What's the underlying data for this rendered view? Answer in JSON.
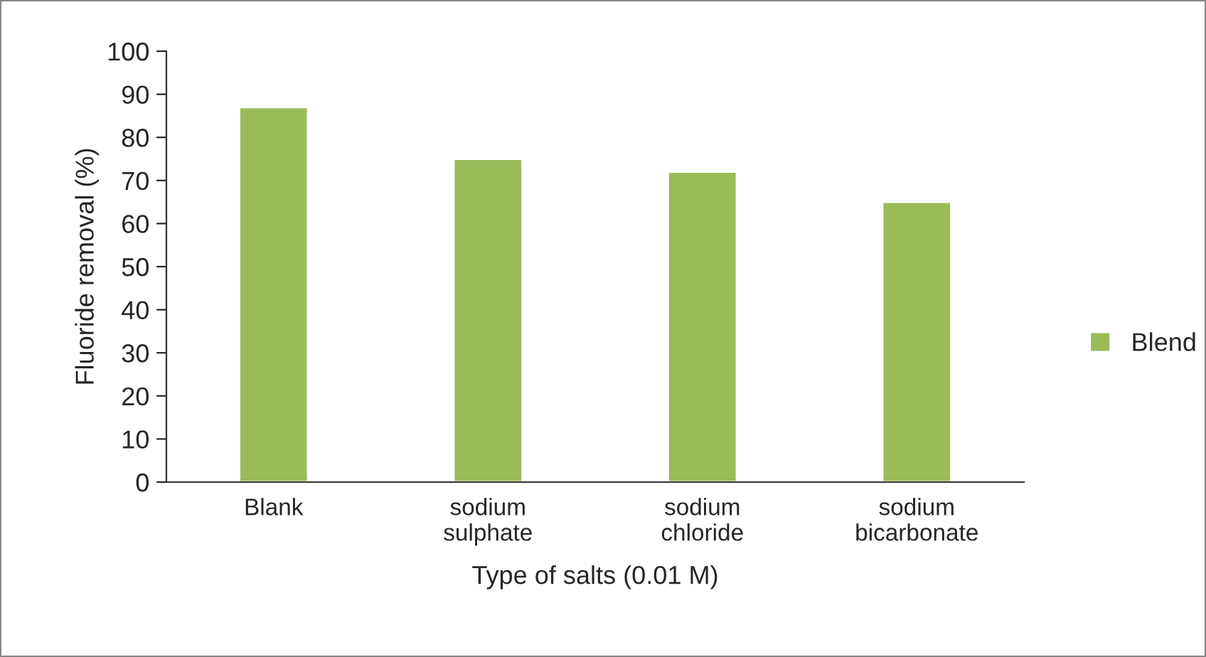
{
  "chart_data": {
    "type": "bar",
    "xlabel": "Type of salts (0.01 M)",
    "ylabel": "Fluoride removal (%)",
    "categories": [
      "Blank",
      "sodium\nsulphate",
      "sodium\nchloride",
      "sodium\nbicarbonate"
    ],
    "series": [
      {
        "name": "Blend",
        "color": "#9bbb59",
        "values": [
          87,
          75,
          72,
          65
        ]
      }
    ],
    "ylim": [
      0,
      100
    ],
    "yticks": [
      0,
      10,
      20,
      30,
      40,
      50,
      60,
      70,
      80,
      90,
      100
    ],
    "grid": false,
    "legend": "right"
  }
}
